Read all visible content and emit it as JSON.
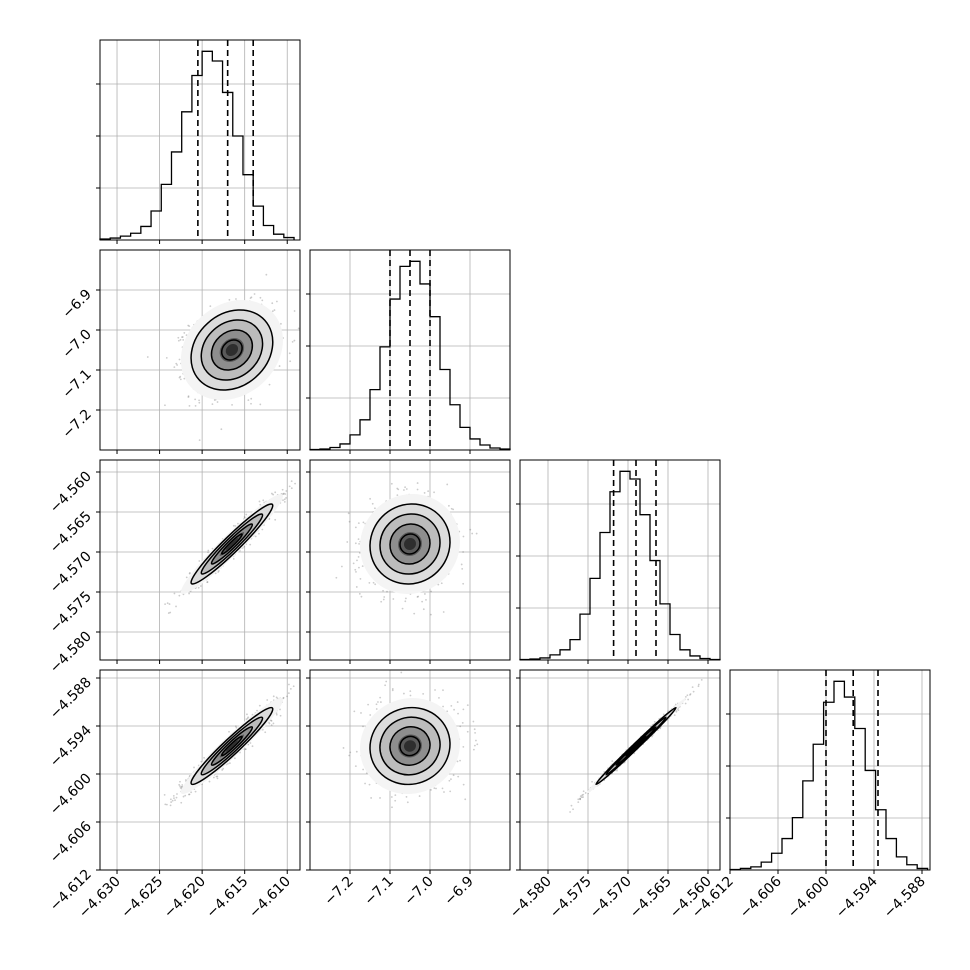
{
  "chart_data": {
    "type": "corner",
    "grid": true,
    "colors": {
      "ink": "#000000",
      "grid": "#b0b0b0",
      "samples": "#6e6e6e"
    },
    "params": [
      {
        "range": [
          -4.632,
          -4.6085
        ],
        "ticks": [
          -4.63,
          -4.625,
          -4.62,
          -4.615,
          -4.61
        ],
        "tick_labels": [
          "−4.630",
          "−4.625",
          "−4.620",
          "−4.615",
          "−4.610"
        ],
        "mean": -4.6165,
        "sigma": 0.0024,
        "quantiles": [
          -4.6205,
          -4.617,
          -4.614
        ],
        "hist_edges": [
          -4.632,
          -4.6308,
          -4.6296,
          -4.6284,
          -4.6272,
          -4.626,
          -4.6248,
          -4.6236,
          -4.6224,
          -4.6212,
          -4.62,
          -4.6188,
          -4.6176,
          -4.6164,
          -4.6152,
          -4.614,
          -4.6128,
          -4.6116,
          -4.6104,
          -4.6092
        ],
        "hist_counts": [
          2,
          4,
          8,
          14,
          28,
          60,
          115,
          182,
          265,
          340,
          390,
          370,
          305,
          215,
          135,
          70,
          30,
          12,
          5
        ]
      },
      {
        "range": [
          -7.3,
          -6.8
        ],
        "ticks": [
          -7.2,
          -7.1,
          -7.0,
          -6.9
        ],
        "tick_labels": [
          "−7.2",
          "−7.1",
          "−7.0",
          "−6.9"
        ],
        "mean": -7.05,
        "sigma": 0.05,
        "quantiles": [
          -7.1,
          -7.05,
          -7.0
        ],
        "hist_edges": [
          -7.3,
          -7.275,
          -7.25,
          -7.225,
          -7.2,
          -7.175,
          -7.15,
          -7.125,
          -7.1,
          -7.075,
          -7.05,
          -7.025,
          -7.0,
          -6.975,
          -6.95,
          -6.925,
          -6.9,
          -6.875,
          -6.85,
          -6.825,
          -6.8
        ],
        "hist_counts": [
          1,
          2,
          5,
          12,
          30,
          60,
          120,
          205,
          300,
          365,
          375,
          330,
          265,
          160,
          90,
          45,
          22,
          10,
          4,
          2
        ]
      },
      {
        "range": [
          -4.5835,
          -4.5585
        ],
        "ticks": [
          -4.58,
          -4.575,
          -4.57,
          -4.565,
          -4.56
        ],
        "tick_labels": [
          "−4.580",
          "−4.575",
          "−4.570",
          "−4.565",
          "−4.560"
        ],
        "mean": -4.569,
        "sigma": 0.0025,
        "quantiles": [
          -4.5718,
          -4.569,
          -4.5665
        ],
        "hist_edges": [
          -4.5835,
          -4.58225,
          -4.581,
          -4.57975,
          -4.5785,
          -4.57725,
          -4.576,
          -4.57475,
          -4.5735,
          -4.57225,
          -4.571,
          -4.56975,
          -4.5685,
          -4.56725,
          -4.566,
          -4.56475,
          -4.5635,
          -4.56225,
          -4.561,
          -4.55975,
          -4.5585
        ],
        "hist_counts": [
          1,
          2,
          4,
          10,
          20,
          40,
          90,
          160,
          250,
          330,
          370,
          355,
          285,
          195,
          110,
          50,
          20,
          8,
          3,
          1
        ]
      },
      {
        "range": [
          -4.612,
          -4.587
        ],
        "ticks": [
          -4.612,
          -4.606,
          -4.6,
          -4.594,
          -4.588
        ],
        "tick_labels": [
          "−4.612",
          "−4.606",
          "−4.600",
          "−4.594",
          "−4.588"
        ],
        "mean": -4.5965,
        "sigma": 0.0024,
        "quantiles": [
          -4.6,
          -4.5966,
          -4.5935
        ],
        "hist_edges": [
          -4.612,
          -4.6107,
          -4.6094,
          -4.6081,
          -4.6068,
          -4.6055,
          -4.6042,
          -4.6029,
          -4.6016,
          -4.6003,
          -4.599,
          -4.5977,
          -4.5964,
          -4.5951,
          -4.5938,
          -4.5925,
          -4.5912,
          -4.5899,
          -4.5886,
          -4.5873
        ],
        "hist_counts": [
          1,
          3,
          6,
          15,
          32,
          60,
          100,
          170,
          240,
          320,
          360,
          330,
          270,
          190,
          115,
          60,
          25,
          10,
          3
        ]
      }
    ],
    "correlations": {
      "1-0": 0.2,
      "2-0": 0.96,
      "2-1": 0.05,
      "3-0": 0.96,
      "3-1": 0.05,
      "3-2": 0.995
    }
  }
}
